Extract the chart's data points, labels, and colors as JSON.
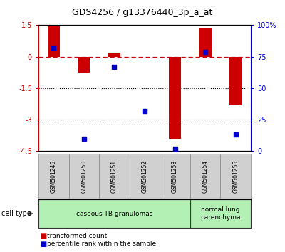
{
  "title": "GDS4256 / g13376440_3p_a_at",
  "samples": [
    "GSM501249",
    "GSM501250",
    "GSM501251",
    "GSM501252",
    "GSM501253",
    "GSM501254",
    "GSM501255"
  ],
  "transformed_count": [
    1.45,
    -0.75,
    0.2,
    -0.02,
    -3.9,
    1.35,
    -2.3
  ],
  "percentile_rank": [
    82,
    10,
    67,
    32,
    2,
    79,
    13
  ],
  "ylim_left": [
    -4.5,
    1.5
  ],
  "ylim_right": [
    0,
    100
  ],
  "yticks_left": [
    1.5,
    0,
    -1.5,
    -3,
    -4.5
  ],
  "yticks_right": [
    100,
    75,
    50,
    25,
    0
  ],
  "ytick_labels_left": [
    "1.5",
    "0",
    "-1.5",
    "-3",
    "-4.5"
  ],
  "ytick_labels_right": [
    "100%",
    "75",
    "50",
    "25",
    "0"
  ],
  "hline_y": 0,
  "dotted_lines": [
    -1.5,
    -3
  ],
  "bar_color": "#cc0000",
  "dot_color": "#0000cc",
  "group0_label": "caseous TB granulomas",
  "group0_count": 5,
  "group1_label": "normal lung\nparenchyma",
  "group1_count": 2,
  "group_color": "#b3f0b3",
  "sample_box_color": "#d0d0d0",
  "legend_bar_label": "transformed count",
  "legend_dot_label": "percentile rank within the sample",
  "cell_type_label": "cell type",
  "bar_width": 0.4,
  "fig_width": 4.0,
  "fig_height": 3.54,
  "dpi": 100
}
